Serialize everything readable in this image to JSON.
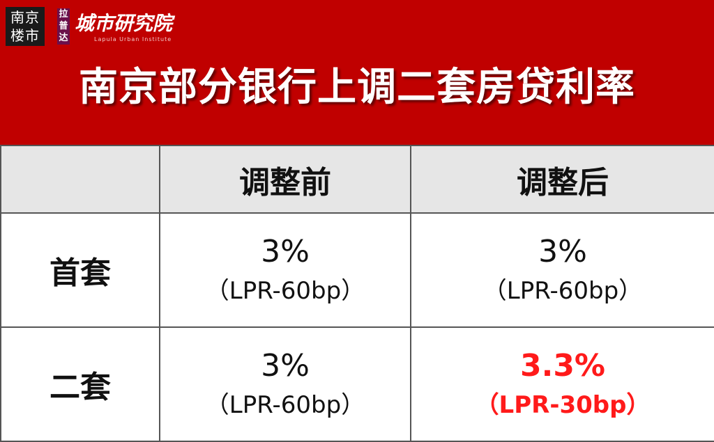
{
  "header": {
    "badge": "南京楼市",
    "brand_small": "拉普达",
    "brand": "城市研究院",
    "brand_en": "Lapula Urban Institute",
    "title": "南京部分银行上调二套房贷利率"
  },
  "table": {
    "columns": [
      "调整前",
      "调整后"
    ],
    "rows": [
      {
        "label": "首套",
        "cells": [
          {
            "rate": "3%",
            "note": "（LPR-60bp）"
          },
          {
            "rate": "3%",
            "note": "（LPR-60bp）"
          }
        ]
      },
      {
        "label": "二套",
        "cells": [
          {
            "rate": "3%",
            "note": "（LPR-60bp）"
          },
          {
            "rate": "3.3%",
            "note": "（LPR-30bp）",
            "color": "#ff1a1a"
          }
        ]
      }
    ]
  }
}
